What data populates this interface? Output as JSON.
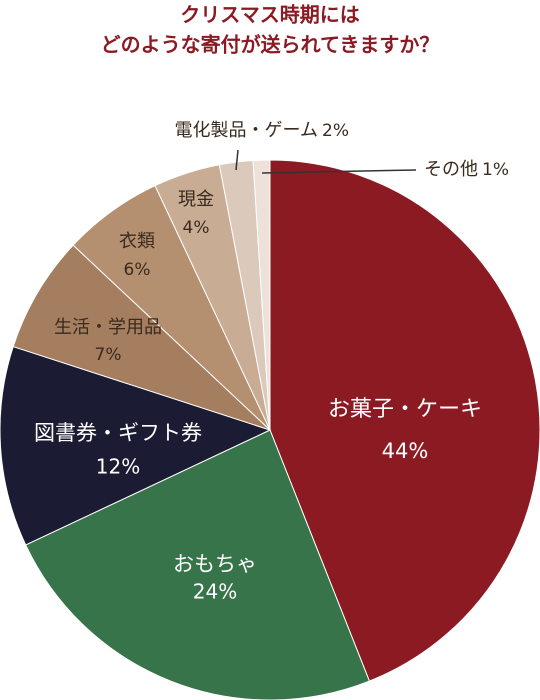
{
  "chart_data": {
    "type": "pie",
    "title": [
      "クリスマス時期には",
      "どのような寄付が送られてきますか？"
    ],
    "categories": [
      "お菓子・ケーキ",
      "おもちゃ",
      "図書券・ギフト券",
      "生活・学用品",
      "衣類",
      "現金",
      "電化製品・ゲーム",
      "その他"
    ],
    "values": [
      44,
      24,
      12,
      7,
      6,
      4,
      2,
      1
    ],
    "value_labels": [
      "44%",
      "24%",
      "12%",
      "7%",
      "6%",
      "4%",
      "2%",
      "1%"
    ],
    "colors": [
      "#8b1a23",
      "#37744a",
      "#1b1c33",
      "#a47e5e",
      "#b48f70",
      "#c8ac93",
      "#dbcabb",
      "#ede1da"
    ]
  }
}
